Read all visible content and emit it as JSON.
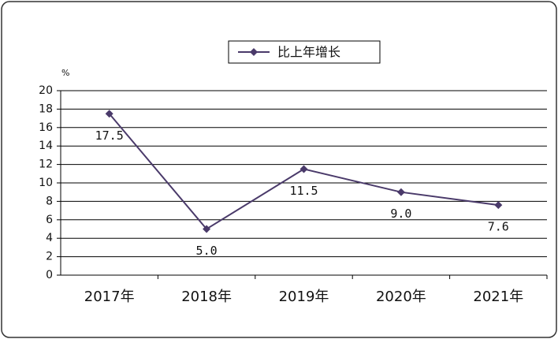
{
  "chart_data": {
    "type": "line",
    "y_label": "%",
    "categories": [
      "2017年",
      "2018年",
      "2019年",
      "2020年",
      "2021年"
    ],
    "series": [
      {
        "name": "比上年增长",
        "color": "#4a3a6a",
        "values": [
          17.5,
          5.0,
          11.5,
          9.0,
          7.6
        ],
        "value_labels": [
          "17.5",
          "5.0",
          "11.5",
          "9.0",
          "7.6"
        ]
      }
    ],
    "ylim": [
      0,
      20
    ],
    "yticks": [
      0,
      2,
      4,
      6,
      8,
      10,
      12,
      14,
      16,
      18,
      20
    ],
    "grid": true,
    "legend": "top"
  }
}
